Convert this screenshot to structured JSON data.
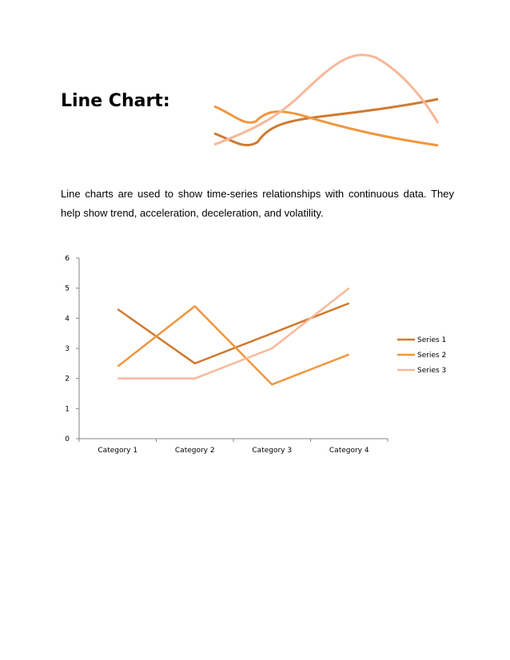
{
  "page": {
    "title": "Line Chart:",
    "paragraph": "Line charts are used to show time-series relationships with continuous data. They help show trend, acceleration, deceleration, and volatility."
  },
  "chart_data": {
    "type": "line",
    "categories": [
      "Category 1",
      "Category 2",
      "Category 3",
      "Category 4"
    ],
    "series": [
      {
        "name": "Series 1",
        "values": [
          4.3,
          2.5,
          3.5,
          4.5
        ],
        "color": "#d07a30"
      },
      {
        "name": "Series 2",
        "values": [
          2.4,
          4.4,
          1.8,
          2.8
        ],
        "color": "#f0963e"
      },
      {
        "name": "Series 3",
        "values": [
          2.0,
          2.0,
          3.0,
          5.0
        ],
        "color": "#f7b89a"
      }
    ],
    "ylim": [
      0,
      6
    ],
    "yticks": [
      "0",
      "1",
      "2",
      "3",
      "4",
      "5",
      "6"
    ],
    "grid": false,
    "legend": "right"
  }
}
